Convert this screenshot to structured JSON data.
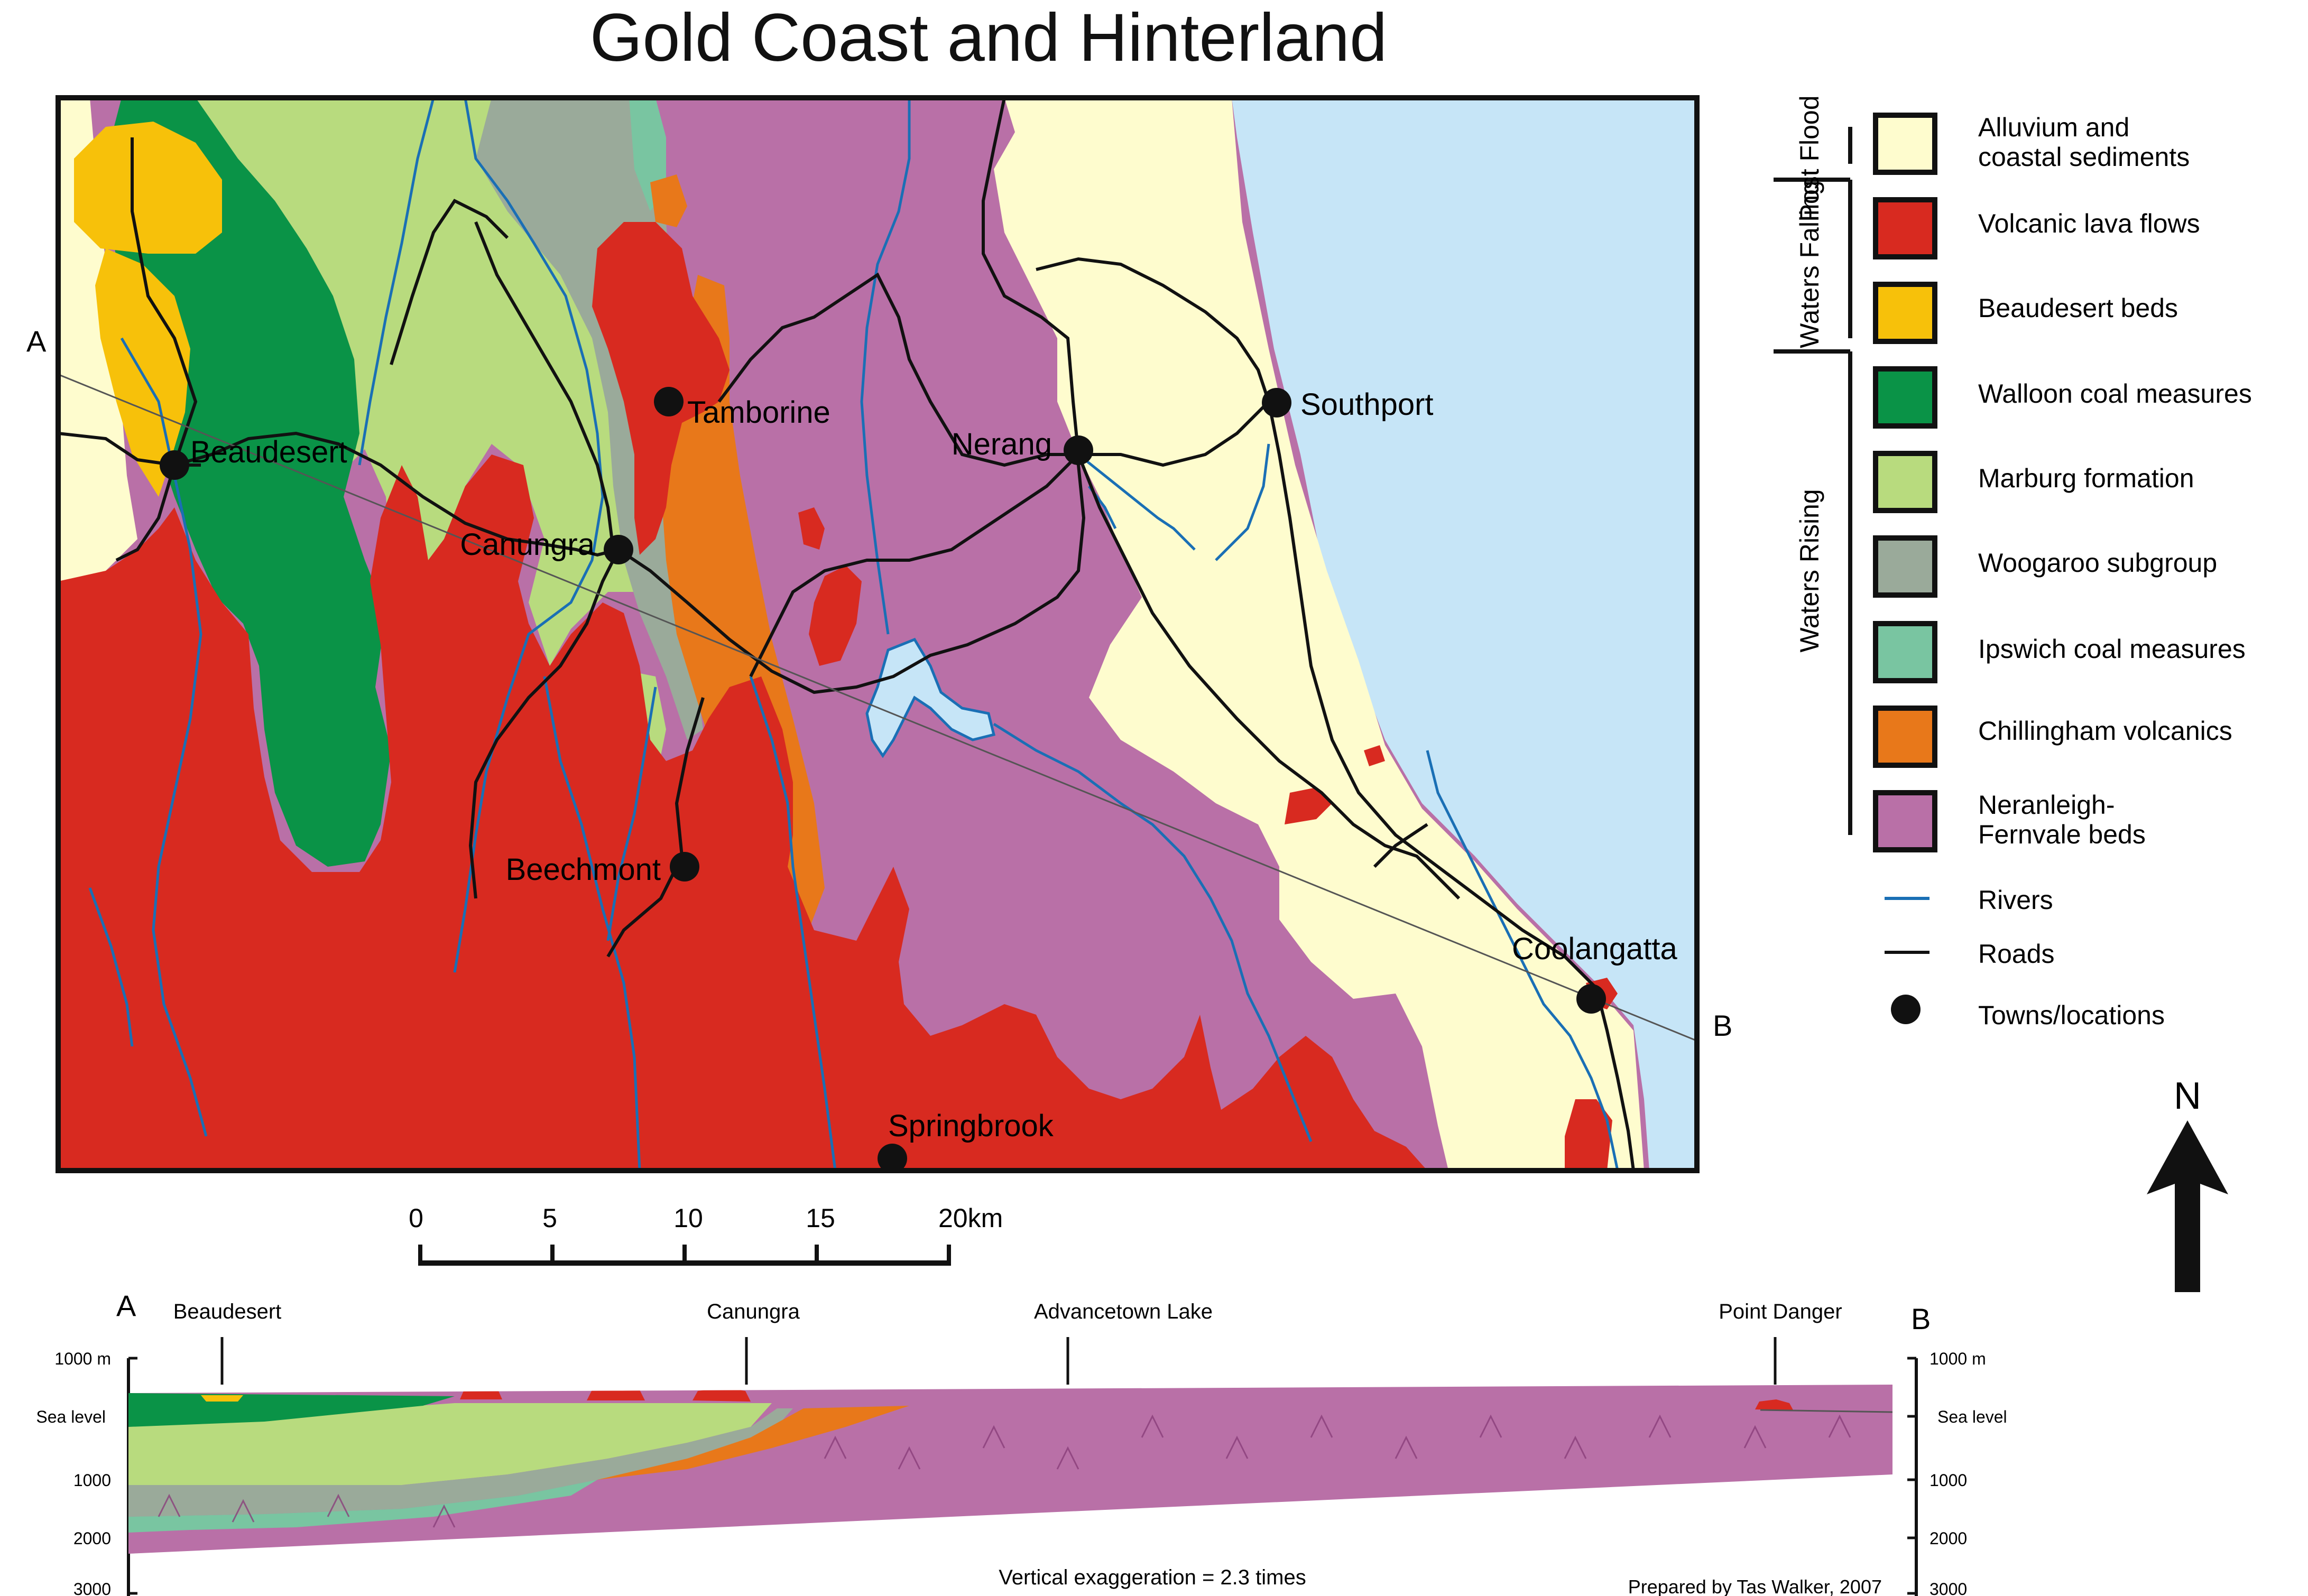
{
  "title": "Gold Coast and Hinterland",
  "section_markers": {
    "start": "A",
    "end": "B"
  },
  "towns": {
    "beaudesert": "Beaudesert",
    "tamborine": "Tamborine",
    "canungra": "Canungra",
    "nerang": "Nerang",
    "southport": "Southport",
    "beechmont": "Beechmont",
    "springbrook": "Springbrook",
    "coolangatta": "Coolangatta"
  },
  "scale_bar": {
    "ticks": [
      "0",
      "5",
      "10",
      "15",
      "20km"
    ]
  },
  "legend": {
    "groups": [
      {
        "label": "Post Flood"
      },
      {
        "label": "Waters Falling"
      },
      {
        "label": "Waters Rising"
      }
    ],
    "units": [
      {
        "label": "Alluvium and coastal sediments",
        "color": "#fefcce"
      },
      {
        "label": "Volcanic lava flows",
        "color": "#d82a20"
      },
      {
        "label": "Beaudesert beds",
        "color": "#f7c10a"
      },
      {
        "label": "Walloon coal measures",
        "color": "#0a9347"
      },
      {
        "label": "Marburg formation",
        "color": "#b8db7e"
      },
      {
        "label": "Woogaroo subgroup",
        "color": "#9aaa9a"
      },
      {
        "label": "Ipswich coal measures",
        "color": "#79c5a1"
      },
      {
        "label": "Chillingham volcanics",
        "color": "#e8781a"
      },
      {
        "label": "Neranleigh-Fernvale beds",
        "color": "#b970a7"
      }
    ],
    "symbols": [
      {
        "label": "Rivers",
        "icon": "river-line-icon",
        "color": "#1a6fb5"
      },
      {
        "label": "Roads",
        "icon": "road-line-icon",
        "color": "#111111"
      },
      {
        "label": "Towns/locations",
        "icon": "town-dot-icon",
        "color": "#111111"
      }
    ]
  },
  "north_arrow": {
    "label": "N"
  },
  "ocean_color": "#c6e5f7",
  "cross_section": {
    "left_axis": [
      "1000 m",
      "Sea level",
      "1000",
      "2000",
      "3000"
    ],
    "right_axis": [
      "1000 m",
      "Sea level",
      "1000",
      "2000",
      "3000"
    ],
    "places": {
      "beaudesert": "Beaudesert",
      "canungra": "Canungra",
      "advancetown": "Advancetown Lake",
      "point_danger": "Point Danger"
    },
    "note": "Vertical exaggeration = 2.3 times"
  },
  "credit": "Prepared by Tas Walker, 2007"
}
